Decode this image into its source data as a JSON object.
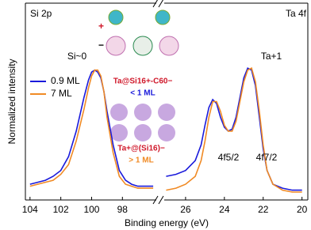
{
  "chart_data": [
    {
      "type": "line",
      "title": "Si 2p",
      "ylabel": "Normalized intensity",
      "xlabel": "Binding energy (eV)",
      "xlim": [
        104.3,
        95.8
      ],
      "xticks": [
        104,
        102,
        100,
        98
      ],
      "ylim": [
        0,
        1
      ],
      "legend": "upper left",
      "x": [
        104,
        103.5,
        103,
        102.5,
        102,
        101.5,
        101,
        100.5,
        100.2,
        100,
        99.8,
        99.6,
        99.4,
        99.2,
        99,
        98.6,
        98.2,
        97.8,
        97.4,
        97,
        96.5,
        96
      ],
      "series": [
        {
          "name": "0.9 ML",
          "color": "#1a1adb",
          "values": [
            0.08,
            0.09,
            0.1,
            0.12,
            0.15,
            0.22,
            0.35,
            0.52,
            0.61,
            0.65,
            0.66,
            0.65,
            0.62,
            0.55,
            0.45,
            0.28,
            0.15,
            0.1,
            0.08,
            0.07,
            0.07,
            0.07
          ]
        },
        {
          "name": "7 ML",
          "color": "#f08a24",
          "values": [
            0.07,
            0.08,
            0.09,
            0.1,
            0.13,
            0.18,
            0.3,
            0.46,
            0.57,
            0.63,
            0.66,
            0.66,
            0.63,
            0.55,
            0.42,
            0.24,
            0.12,
            0.08,
            0.07,
            0.06,
            0.06,
            0.06
          ]
        }
      ],
      "annotations": [
        {
          "text": "Si~0",
          "color": "#000000"
        },
        {
          "text": "Ta@Si16+-C60−",
          "color": "#d0182a"
        },
        {
          "text": "< 1 ML",
          "color": "#1a1adb"
        },
        {
          "text": "Ta+@(Si16)−",
          "color": "#d0182a"
        },
        {
          "text": "> 1 ML",
          "color": "#f08a24"
        }
      ]
    },
    {
      "type": "line",
      "title": "Ta 4f",
      "xlim": [
        27.1,
        19.7
      ],
      "xticks": [
        26,
        24,
        22,
        20
      ],
      "ylim": [
        0,
        1
      ],
      "x": [
        27,
        26.5,
        26,
        25.5,
        25.2,
        25,
        24.8,
        24.6,
        24.4,
        24.2,
        24,
        23.8,
        23.6,
        23.4,
        23.2,
        23,
        22.8,
        22.6,
        22.4,
        22.2,
        22,
        21.8,
        21.5,
        21,
        20.5,
        20
      ],
      "series": [
        {
          "name": "0.9 ML",
          "color": "#1a1adb",
          "values": [
            0.12,
            0.13,
            0.15,
            0.2,
            0.28,
            0.38,
            0.47,
            0.51,
            0.49,
            0.42,
            0.37,
            0.35,
            0.36,
            0.42,
            0.52,
            0.62,
            0.67,
            0.66,
            0.58,
            0.42,
            0.26,
            0.15,
            0.08,
            0.06,
            0.05,
            0.05
          ]
        },
        {
          "name": "7 ML",
          "color": "#f08a24",
          "values": [
            0.05,
            0.06,
            0.08,
            0.12,
            0.2,
            0.3,
            0.42,
            0.5,
            0.5,
            0.45,
            0.38,
            0.35,
            0.35,
            0.4,
            0.5,
            0.6,
            0.66,
            0.67,
            0.6,
            0.45,
            0.28,
            0.15,
            0.08,
            0.05,
            0.04,
            0.04
          ]
        }
      ],
      "annotations": [
        {
          "text": "Ta+1",
          "color": "#000000"
        },
        {
          "text": "4f5/2",
          "color": "#000000"
        },
        {
          "text": "4f7/2",
          "color": "#000000"
        }
      ]
    }
  ]
}
